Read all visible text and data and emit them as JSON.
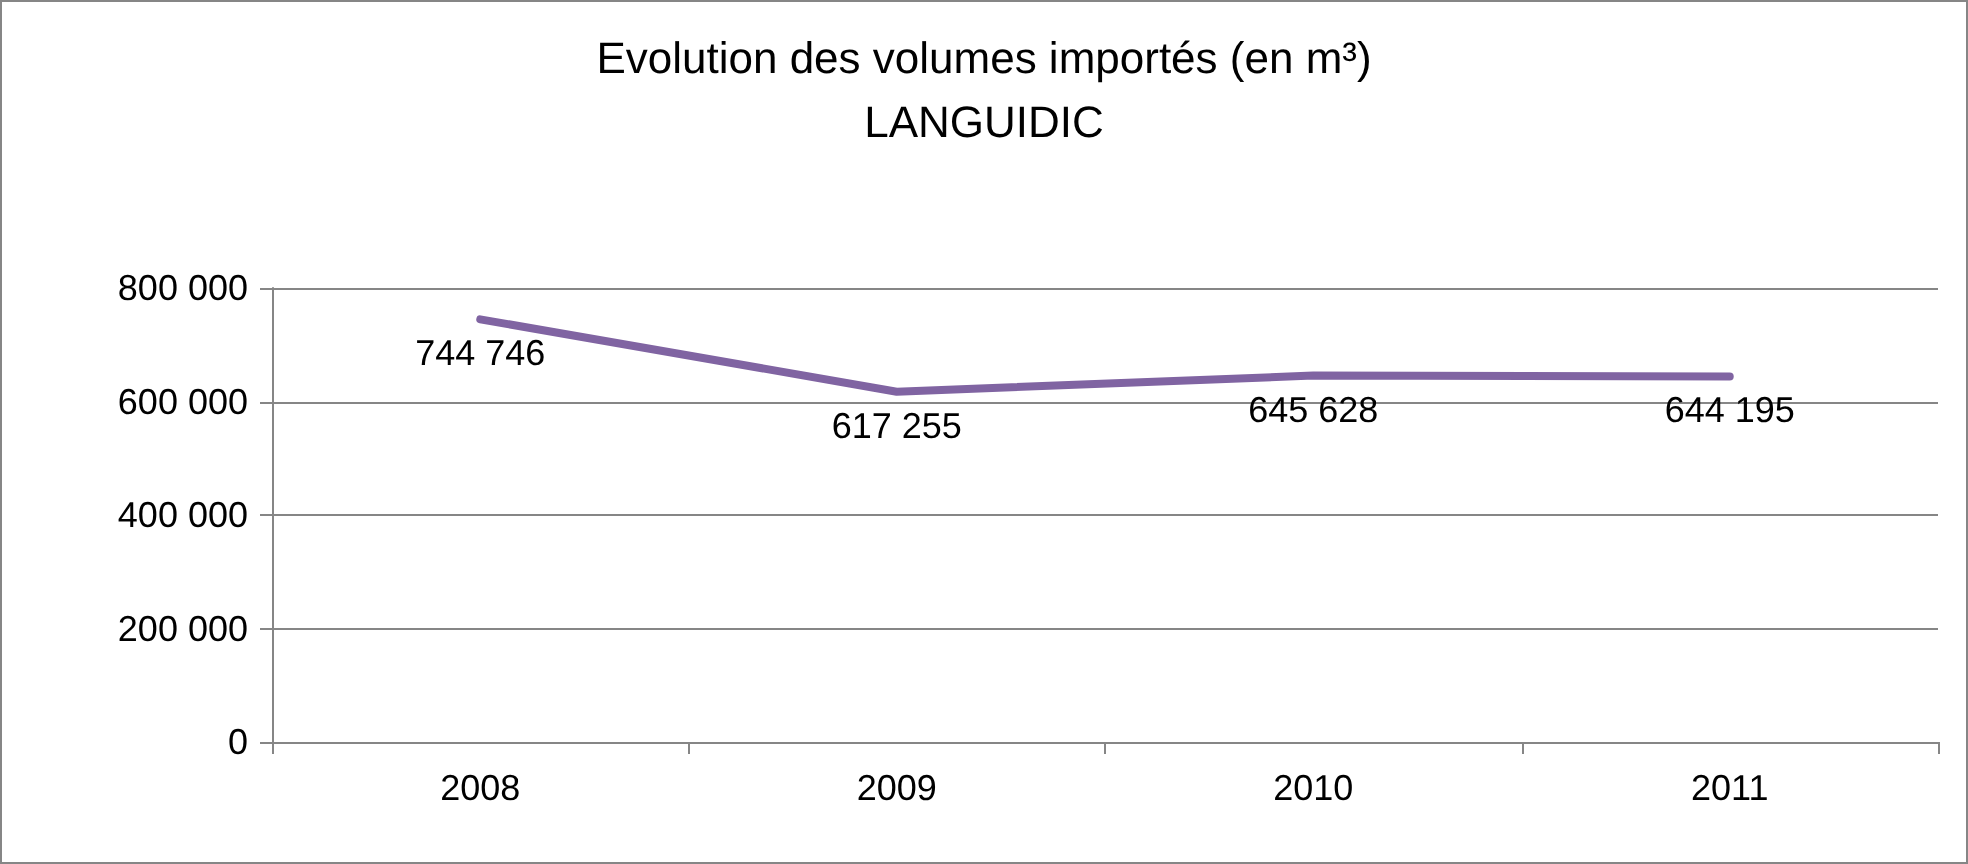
{
  "chart_data": {
    "type": "line",
    "title": "Evolution des volumes importés (en m³)",
    "subtitle": "LANGUIDIC",
    "categories": [
      "2008",
      "2009",
      "2010",
      "2011"
    ],
    "series": [
      {
        "color": "#8064a2",
        "values": [
          744746,
          617255,
          645628,
          644195
        ],
        "value_labels": [
          "744 746",
          "617 255",
          "645 628",
          "644 195"
        ]
      }
    ],
    "ylim": [
      0,
      800000
    ],
    "yticks": [
      {
        "value": 0,
        "label": "0"
      },
      {
        "value": 200000,
        "label": "200 000"
      },
      {
        "value": 400000,
        "label": "400 000"
      },
      {
        "value": 600000,
        "label": "600 000"
      },
      {
        "value": 800000,
        "label": "800 000"
      }
    ],
    "grid": "y",
    "marker": "none",
    "line_style": "solid"
  }
}
